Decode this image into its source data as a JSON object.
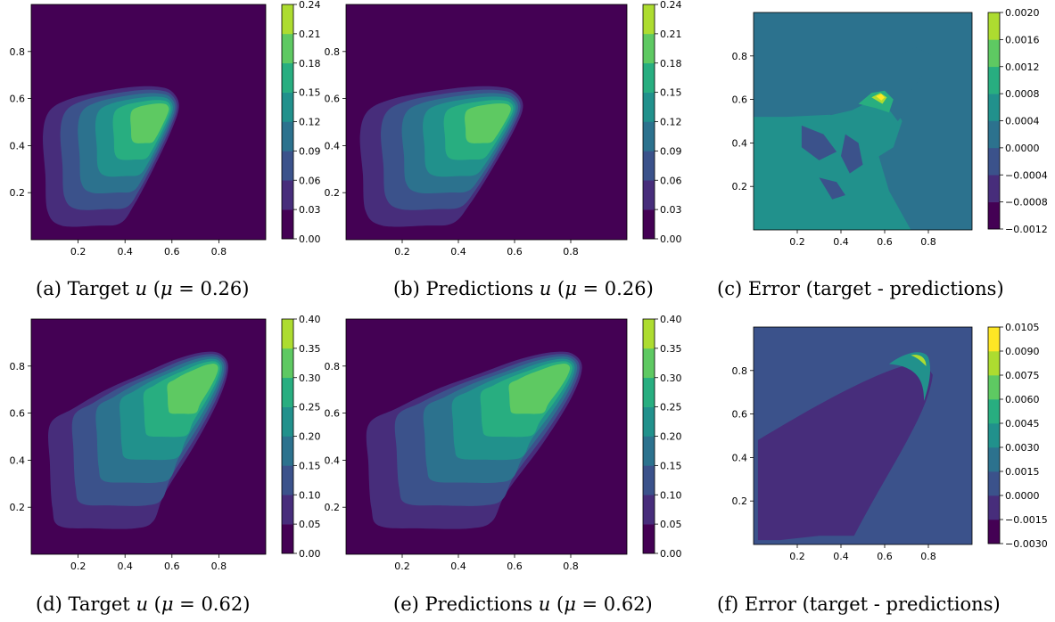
{
  "palette": [
    "#440154",
    "#472d7b",
    "#3b528b",
    "#2c728e",
    "#21918c",
    "#28ae80",
    "#5ec962",
    "#addc30",
    "#fde725"
  ],
  "chart_data": [
    {
      "id": "a",
      "type": "contour",
      "caption": "(a) Target u (μ = 0.26)",
      "caption_parts": {
        "prefix": "(a) Target ",
        "var": "u",
        "open": " (",
        "mu": "μ",
        "eq": " = 0.26)"
      },
      "xticks": [
        "0.2",
        "0.4",
        "0.6",
        "0.8"
      ],
      "yticks": [
        "0.2",
        "0.4",
        "0.6",
        "0.8"
      ],
      "xlim": [
        0,
        1
      ],
      "ylim": [
        0,
        1
      ],
      "colorbar": {
        "levels": [
          0.0,
          0.03,
          0.06,
          0.09,
          0.12,
          0.15,
          0.18,
          0.21,
          0.24
        ],
        "labels": [
          "0.00",
          "0.03",
          "0.06",
          "0.09",
          "0.12",
          "0.15",
          "0.18",
          "0.21",
          "0.24"
        ]
      },
      "peak": [
        0.57,
        0.55
      ],
      "peak_value": 0.19
    },
    {
      "id": "b",
      "type": "contour",
      "caption": "(b) Predictions u (μ = 0.26)",
      "caption_parts": {
        "prefix": "(b) Predictions ",
        "var": "u",
        "open": " (",
        "mu": "μ",
        "eq": " = 0.26)"
      },
      "xticks": [
        "0.2",
        "0.4",
        "0.6",
        "0.8"
      ],
      "yticks": [
        "0.2",
        "0.4",
        "0.6",
        "0.8"
      ],
      "xlim": [
        0,
        1
      ],
      "ylim": [
        0,
        1
      ],
      "colorbar": {
        "levels": [
          0.0,
          0.03,
          0.06,
          0.09,
          0.12,
          0.15,
          0.18,
          0.21,
          0.24
        ],
        "labels": [
          "0.00",
          "0.03",
          "0.06",
          "0.09",
          "0.12",
          "0.15",
          "0.18",
          "0.21",
          "0.24"
        ]
      },
      "peak": [
        0.57,
        0.55
      ],
      "peak_value": 0.19
    },
    {
      "id": "c",
      "type": "contour",
      "caption": "(c) Error (target - predictions)",
      "caption_parts": {
        "prefix": "(c) Error (target - predictions)"
      },
      "xticks": [
        "0.2",
        "0.4",
        "0.6",
        "0.8"
      ],
      "yticks": [
        "0.2",
        "0.4",
        "0.6",
        "0.8"
      ],
      "xlim": [
        0,
        1
      ],
      "ylim": [
        0,
        1
      ],
      "colorbar": {
        "levels": [
          -0.0012,
          -0.0008,
          -0.0004,
          0.0,
          0.0004,
          0.0008,
          0.0012,
          0.0016,
          0.002
        ],
        "labels": [
          "−0.0012",
          "−0.0008",
          "−0.0004",
          "0.0000",
          "0.0004",
          "0.0008",
          "0.0012",
          "0.0016",
          "0.0020"
        ]
      }
    },
    {
      "id": "d",
      "type": "contour",
      "caption": "(d) Target u (μ = 0.62)",
      "caption_parts": {
        "prefix": "(d) Target ",
        "var": "u",
        "open": " (",
        "mu": "μ",
        "eq": " = 0.62)"
      },
      "xticks": [
        "0.2",
        "0.4",
        "0.6",
        "0.8"
      ],
      "yticks": [
        "0.2",
        "0.4",
        "0.6",
        "0.8"
      ],
      "xlim": [
        0,
        1
      ],
      "ylim": [
        0,
        1
      ],
      "colorbar": {
        "levels": [
          0.0,
          0.05,
          0.1,
          0.15,
          0.2,
          0.25,
          0.3,
          0.35,
          0.4
        ],
        "labels": [
          "0.00",
          "0.05",
          "0.10",
          "0.15",
          "0.20",
          "0.25",
          "0.30",
          "0.35",
          "0.40"
        ]
      },
      "peak": [
        0.78,
        0.79
      ],
      "peak_value": 0.33
    },
    {
      "id": "e",
      "type": "contour",
      "caption": "(e) Predictions u (μ = 0.62)",
      "caption_parts": {
        "prefix": "(e) Predictions ",
        "var": "u",
        "open": " (",
        "mu": "μ",
        "eq": " = 0.62)"
      },
      "xticks": [
        "0.2",
        "0.4",
        "0.6",
        "0.8"
      ],
      "yticks": [
        "0.2",
        "0.4",
        "0.6",
        "0.8"
      ],
      "xlim": [
        0,
        1
      ],
      "ylim": [
        0,
        1
      ],
      "colorbar": {
        "levels": [
          0.0,
          0.05,
          0.1,
          0.15,
          0.2,
          0.25,
          0.3,
          0.35,
          0.4
        ],
        "labels": [
          "0.00",
          "0.05",
          "0.10",
          "0.15",
          "0.20",
          "0.25",
          "0.30",
          "0.35",
          "0.40"
        ]
      },
      "peak": [
        0.78,
        0.79
      ],
      "peak_value": 0.33
    },
    {
      "id": "f",
      "type": "contour",
      "caption": "(f) Error (target - predictions)",
      "caption_parts": {
        "prefix": "(f) Error (target - predictions)"
      },
      "xticks": [
        "0.2",
        "0.4",
        "0.6",
        "0.8"
      ],
      "yticks": [
        "0.2",
        "0.4",
        "0.6",
        "0.8"
      ],
      "xlim": [
        0,
        1
      ],
      "ylim": [
        0,
        1
      ],
      "colorbar": {
        "levels": [
          -0.003,
          -0.0015,
          0.0,
          0.0015,
          0.003,
          0.0045,
          0.006,
          0.0075,
          0.009,
          0.0105
        ],
        "labels": [
          "−0.0030",
          "−0.0015",
          "0.0000",
          "0.0015",
          "0.0030",
          "0.0045",
          "0.0060",
          "0.0075",
          "0.0090",
          "0.0105"
        ]
      }
    }
  ]
}
